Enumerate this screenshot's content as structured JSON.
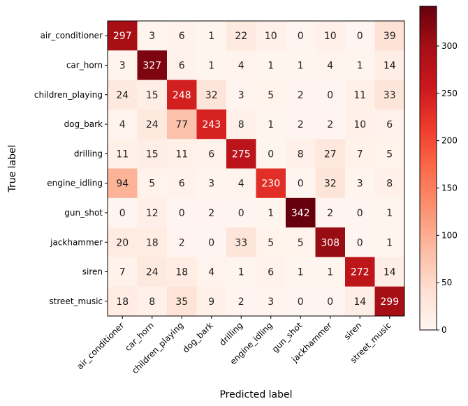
{
  "chart_data": {
    "type": "heatmap",
    "title": "",
    "xlabel": "Predicted label",
    "ylabel": "True label",
    "x_categories": [
      "air_conditioner",
      "car_horn",
      "children_playing",
      "dog_bark",
      "drilling",
      "engine_idling",
      "gun_shot",
      "jackhammer",
      "siren",
      "street_music"
    ],
    "y_categories": [
      "air_conditioner",
      "car_horn",
      "children_playing",
      "dog_bark",
      "drilling",
      "engine_idling",
      "gun_shot",
      "jackhammer",
      "siren",
      "street_music"
    ],
    "values": [
      [
        297,
        3,
        6,
        1,
        22,
        10,
        0,
        10,
        0,
        39
      ],
      [
        3,
        327,
        6,
        1,
        4,
        1,
        1,
        4,
        1,
        14
      ],
      [
        24,
        15,
        248,
        32,
        3,
        5,
        2,
        0,
        11,
        33
      ],
      [
        4,
        24,
        77,
        243,
        8,
        1,
        2,
        2,
        10,
        6
      ],
      [
        11,
        15,
        11,
        6,
        275,
        0,
        8,
        27,
        7,
        5
      ],
      [
        94,
        5,
        6,
        3,
        4,
        230,
        0,
        32,
        3,
        8
      ],
      [
        0,
        12,
        0,
        2,
        0,
        1,
        342,
        2,
        0,
        1
      ],
      [
        20,
        18,
        2,
        0,
        33,
        5,
        5,
        308,
        0,
        1
      ],
      [
        7,
        24,
        18,
        4,
        1,
        6,
        1,
        1,
        272,
        14
      ],
      [
        18,
        8,
        35,
        9,
        2,
        3,
        0,
        0,
        14,
        299
      ]
    ],
    "colormap": "Reds",
    "colorbar": {
      "range": [
        0,
        342
      ],
      "ticks": [
        0,
        50,
        100,
        150,
        200,
        250,
        300
      ]
    },
    "grid": false
  }
}
